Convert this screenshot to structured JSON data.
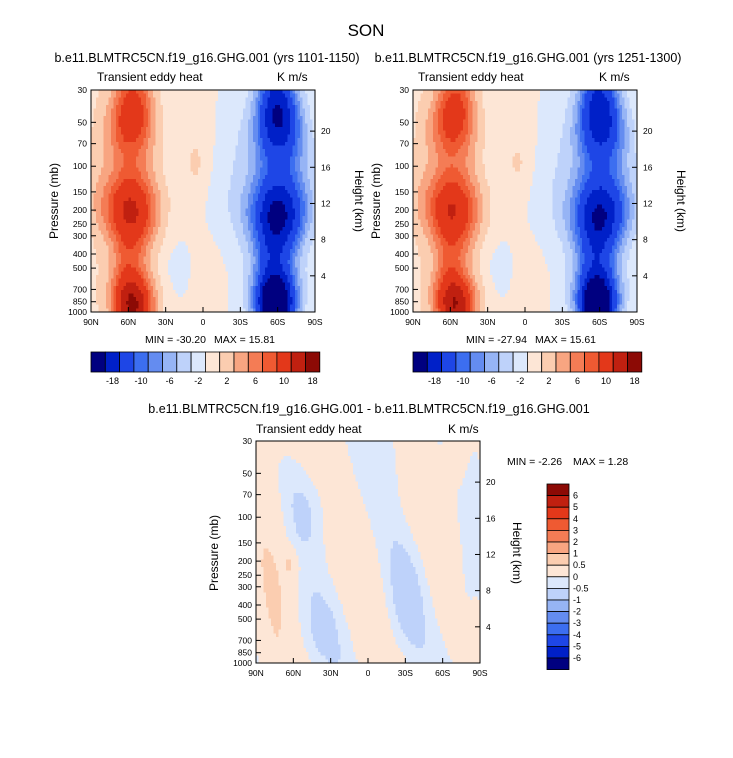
{
  "figure_title": "SON",
  "colors": {
    "blues": [
      "#000080",
      "#0020c8",
      "#1e46e6",
      "#3c6ef0",
      "#648cf0",
      "#96b4f5",
      "#bed2fa",
      "#dce8fc"
    ],
    "reds": [
      "#fde6d6",
      "#fbcdb0",
      "#f8a581",
      "#f47c55",
      "#ef5a32",
      "#e3381a",
      "#c02010",
      "#8c0a05"
    ],
    "frame": "#000000"
  },
  "chart_data": [
    {
      "type": "heatmap",
      "id": "left",
      "title": "b.e11.BLMTRC5CN.f19_g16.GHG.001 (yrs 1101-1150)",
      "left_label": "Transient eddy heat",
      "right_label": "K m/s",
      "ylabel": "Pressure (mb)",
      "ylabel_right": "Height (km)",
      "x_ticks": [
        "90N",
        "60N",
        "30N",
        "0",
        "30S",
        "60S",
        "90S"
      ],
      "y_ticks": [
        "30",
        "50",
        "70",
        "100",
        "150",
        "200",
        "250",
        "300",
        "400",
        "500",
        "700",
        "850",
        "1000"
      ],
      "y_ticks_right": [
        "4",
        "8",
        "12",
        "16",
        "20"
      ],
      "xlim": [
        90,
        -90
      ],
      "ylim": [
        1000,
        30
      ],
      "yscale": "log",
      "min_label": "MIN = -30.20",
      "max_label": "MAX =  15.81",
      "colorbar_labels": [
        "-18",
        "-10",
        "-6",
        "-2",
        "2",
        "6",
        "10",
        "18"
      ],
      "colorbar_orientation": "horizontal",
      "amplitude": 1.0
    },
    {
      "type": "heatmap",
      "id": "right",
      "title": "b.e11.BLMTRC5CN.f19_g16.GHG.001 (yrs 1251-1300)",
      "left_label": "Transient eddy heat",
      "right_label": "K m/s",
      "ylabel": "Pressure (mb)",
      "ylabel_right": "Height (km)",
      "x_ticks": [
        "90N",
        "60N",
        "30N",
        "0",
        "30S",
        "60S",
        "90S"
      ],
      "y_ticks": [
        "30",
        "50",
        "70",
        "100",
        "150",
        "200",
        "250",
        "300",
        "400",
        "500",
        "700",
        "850",
        "1000"
      ],
      "y_ticks_right": [
        "4",
        "8",
        "12",
        "16",
        "20"
      ],
      "xlim": [
        90,
        -90
      ],
      "ylim": [
        1000,
        30
      ],
      "yscale": "log",
      "min_label": "MIN = -27.94",
      "max_label": "MAX =  15.61",
      "colorbar_labels": [
        "-18",
        "-10",
        "-6",
        "-2",
        "2",
        "6",
        "10",
        "18"
      ],
      "colorbar_orientation": "horizontal",
      "amplitude": 0.95
    },
    {
      "type": "heatmap",
      "id": "diff",
      "title": "b.e11.BLMTRC5CN.f19_g16.GHG.001 - b.e11.BLMTRC5CN.f19_g16.GHG.001",
      "left_label": "Transient eddy heat",
      "right_label": "K m/s",
      "ylabel": "Pressure (mb)",
      "ylabel_right": "Height (km)",
      "x_ticks": [
        "90N",
        "60N",
        "30N",
        "0",
        "30S",
        "60S",
        "90S"
      ],
      "y_ticks": [
        "30",
        "50",
        "70",
        "100",
        "150",
        "200",
        "250",
        "300",
        "400",
        "500",
        "700",
        "850",
        "1000"
      ],
      "y_ticks_right": [
        "4",
        "8",
        "12",
        "16",
        "20"
      ],
      "xlim": [
        90,
        -90
      ],
      "ylim": [
        1000,
        30
      ],
      "yscale": "log",
      "min_label": "MIN =  -2.26",
      "max_label": "MAX =   1.28",
      "colorbar_labels": [
        "6",
        "5",
        "4",
        "3",
        "2",
        "1",
        "0.5",
        "0",
        "-0.5",
        "-1",
        "-2",
        "-3",
        "-4",
        "-5",
        "-6"
      ],
      "colorbar_orientation": "vertical"
    }
  ]
}
